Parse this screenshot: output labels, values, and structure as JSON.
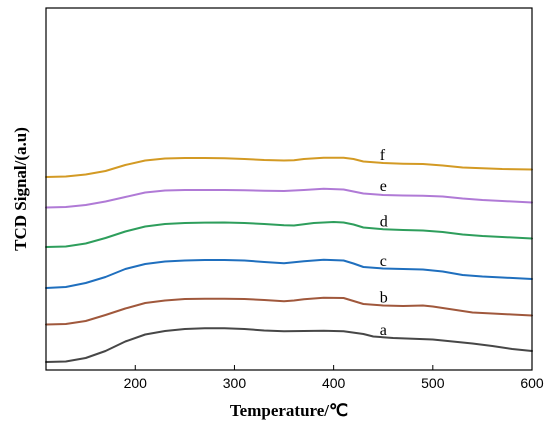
{
  "chart_data": {
    "type": "line",
    "xlabel": "Temperature/℃",
    "ylabel": "TCD Signal/(a.u)",
    "xlim": [
      110,
      600
    ],
    "xticks": [
      200,
      300,
      400,
      500,
      600
    ],
    "yticks": [],
    "ylim": [
      0,
      100
    ],
    "grid": false,
    "legend": "none",
    "series": [
      {
        "name": "a",
        "color": "#474747",
        "x": [
          110,
          130,
          150,
          170,
          190,
          210,
          230,
          250,
          270,
          290,
          310,
          330,
          350,
          370,
          390,
          410,
          430,
          440,
          460,
          480,
          500,
          520,
          540,
          560,
          580,
          600
        ],
        "y": [
          0.0,
          0.5,
          4.0,
          11.0,
          20.5,
          27.5,
          31.0,
          33.0,
          33.8,
          33.8,
          33.0,
          31.5,
          30.8,
          31.0,
          31.2,
          30.8,
          28.0,
          25.5,
          24.0,
          23.2,
          22.5,
          20.5,
          18.5,
          16.0,
          13.0,
          11.0
        ]
      },
      {
        "name": "b",
        "color": "#A0583C",
        "x": [
          110,
          130,
          150,
          170,
          190,
          210,
          230,
          250,
          270,
          290,
          310,
          330,
          350,
          360,
          370,
          390,
          410,
          420,
          430,
          450,
          470,
          490,
          500,
          520,
          540,
          560,
          580,
          600
        ],
        "y": [
          37.5,
          38.0,
          41.0,
          47.0,
          53.5,
          59.0,
          61.5,
          63.0,
          63.3,
          63.3,
          63.0,
          62.0,
          60.8,
          61.5,
          62.8,
          64.2,
          64.0,
          61.0,
          58.0,
          56.5,
          56.0,
          56.5,
          55.5,
          52.5,
          49.5,
          48.5,
          47.5,
          46.5
        ]
      },
      {
        "name": "c",
        "color": "#1F6FBE",
        "x": [
          110,
          130,
          150,
          170,
          190,
          210,
          230,
          250,
          270,
          290,
          310,
          330,
          350,
          370,
          390,
          410,
          420,
          430,
          450,
          470,
          490,
          510,
          530,
          550,
          570,
          600
        ],
        "y": [
          74.0,
          75.0,
          79.0,
          85.0,
          93.0,
          98.0,
          100.5,
          101.5,
          102.0,
          102.0,
          101.5,
          100.0,
          98.8,
          100.8,
          102.3,
          101.5,
          98.5,
          95.0,
          93.5,
          93.0,
          92.5,
          90.5,
          87.0,
          85.5,
          84.5,
          83.0
        ]
      },
      {
        "name": "d",
        "color": "#2E9E5C",
        "x": [
          110,
          130,
          150,
          170,
          190,
          210,
          230,
          250,
          270,
          290,
          310,
          330,
          350,
          360,
          380,
          400,
          410,
          420,
          430,
          450,
          470,
          490,
          510,
          530,
          550,
          570,
          600
        ],
        "y": [
          115.0,
          115.5,
          118.5,
          124.0,
          130.5,
          135.5,
          138.0,
          139.0,
          139.4,
          139.5,
          139.0,
          138.0,
          136.8,
          136.5,
          139.0,
          140.0,
          139.5,
          137.5,
          134.5,
          132.8,
          132.0,
          131.5,
          130.0,
          127.5,
          126.0,
          125.0,
          123.5
        ]
      },
      {
        "name": "e",
        "color": "#B07AD6",
        "x": [
          110,
          130,
          150,
          170,
          190,
          210,
          230,
          250,
          270,
          290,
          310,
          330,
          350,
          370,
          390,
          410,
          430,
          450,
          470,
          490,
          510,
          530,
          550,
          570,
          600
        ],
        "y": [
          154.5,
          155.0,
          157.0,
          160.5,
          165.0,
          169.5,
          171.5,
          172.0,
          172.0,
          172.0,
          171.8,
          171.3,
          171.0,
          172.0,
          173.2,
          172.5,
          168.5,
          167.0,
          166.5,
          166.3,
          165.5,
          163.5,
          162.0,
          161.0,
          159.5
        ]
      },
      {
        "name": "f",
        "color": "#D39A24",
        "x": [
          110,
          130,
          150,
          170,
          190,
          210,
          230,
          250,
          270,
          290,
          310,
          330,
          350,
          360,
          370,
          390,
          410,
          420,
          430,
          450,
          470,
          490,
          510,
          530,
          550,
          570,
          600
        ],
        "y": [
          185.0,
          185.5,
          187.5,
          191.0,
          197.0,
          201.5,
          203.5,
          204.0,
          204.0,
          203.8,
          203.0,
          202.0,
          201.5,
          201.8,
          203.0,
          204.3,
          204.3,
          203.0,
          200.5,
          199.0,
          198.3,
          198.0,
          196.5,
          194.5,
          193.8,
          193.0,
          192.5
        ]
      }
    ]
  }
}
